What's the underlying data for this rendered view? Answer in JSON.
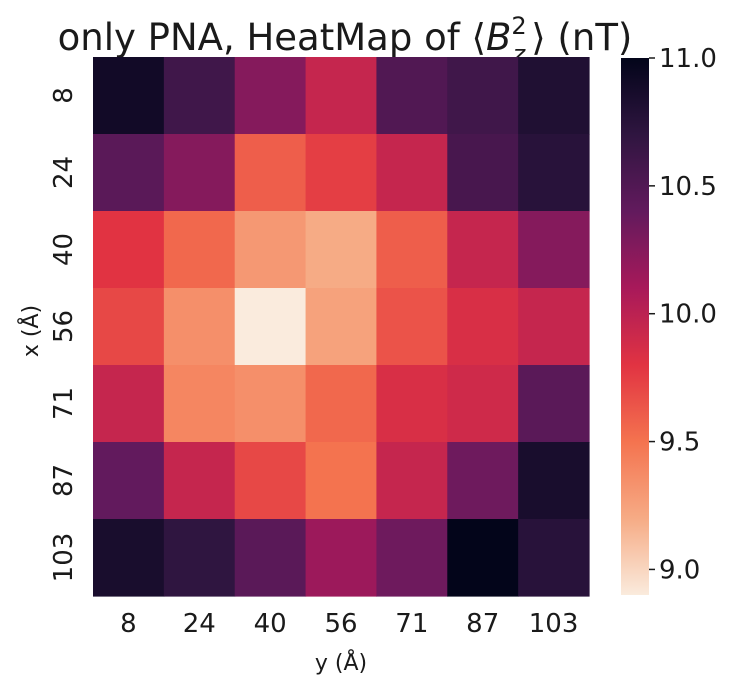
{
  "chart_data": {
    "type": "heatmap",
    "title": {
      "prefix": "only PNA, HeatMap of ",
      "symbol": "B",
      "superscript": "2",
      "subscript": "z",
      "suffix": " (nT)"
    },
    "xlabel": "y (Å)",
    "ylabel": "x (Å)",
    "x_categories": [
      "8",
      "24",
      "40",
      "56",
      "71",
      "87",
      "103"
    ],
    "y_categories": [
      "8",
      "24",
      "40",
      "56",
      "71",
      "87",
      "103"
    ],
    "values": [
      [
        10.9,
        10.6,
        10.25,
        9.95,
        10.5,
        10.6,
        10.8
      ],
      [
        10.45,
        10.25,
        9.6,
        9.75,
        9.95,
        10.55,
        10.75
      ],
      [
        9.8,
        9.55,
        9.3,
        9.2,
        9.6,
        9.95,
        10.25
      ],
      [
        9.7,
        9.35,
        8.9,
        9.25,
        9.65,
        9.85,
        9.95
      ],
      [
        9.95,
        9.4,
        9.35,
        9.55,
        9.85,
        9.9,
        10.45
      ],
      [
        10.4,
        9.95,
        9.7,
        9.5,
        9.95,
        10.35,
        10.85
      ],
      [
        10.85,
        10.7,
        10.45,
        10.15,
        10.35,
        11.0,
        10.75
      ]
    ],
    "colorbar": {
      "min": 8.9,
      "max": 11.0,
      "ticks": [
        9.0,
        9.5,
        10.0,
        10.5,
        11.0
      ],
      "tick_labels": [
        "9.0",
        "9.5",
        "10.0",
        "10.5",
        "11.0"
      ],
      "colormap": "rocket_r",
      "colors": [
        "#faebdd",
        "#f6ab85",
        "#f4734f",
        "#e13342",
        "#a8195a",
        "#621a5d",
        "#2f1540",
        "#03051a"
      ]
    },
    "grid": false
  }
}
